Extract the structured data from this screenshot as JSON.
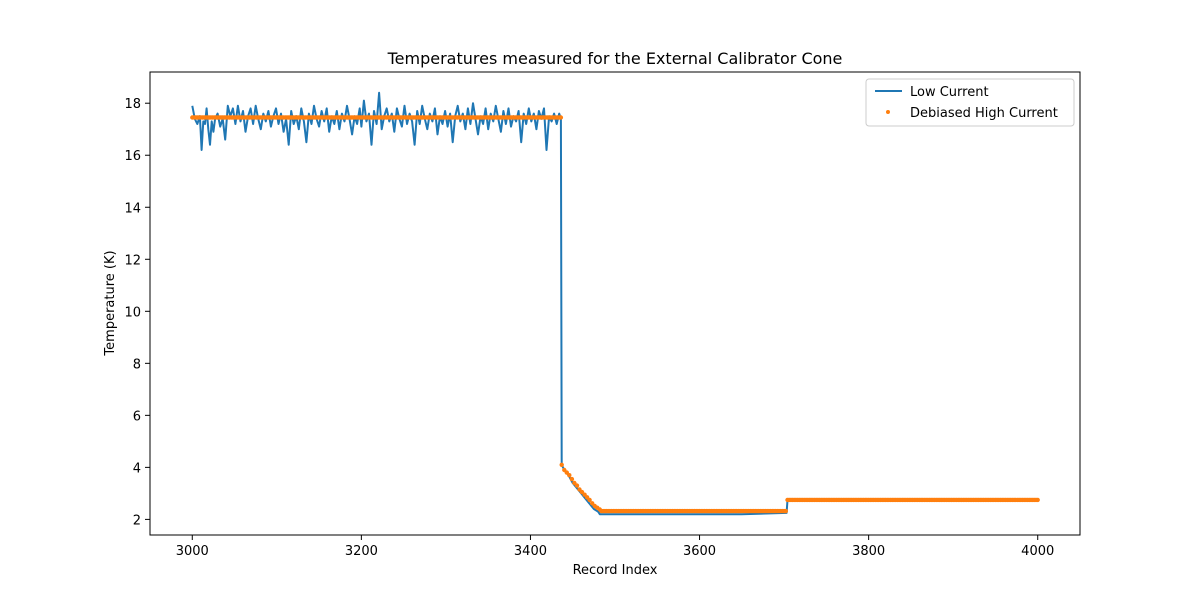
{
  "chart_data": {
    "type": "line",
    "title": "Temperatures measured for the External Calibrator Cone",
    "xlabel": "Record Index",
    "ylabel": "Temperature (K)",
    "xlim": [
      2950,
      4050
    ],
    "ylim": [
      1.4,
      19.2
    ],
    "x_ticks": [
      3000,
      3200,
      3400,
      3600,
      3800,
      4000
    ],
    "x_tick_labels": [
      "3000",
      "3200",
      "3400",
      "3600",
      "3800",
      "4000"
    ],
    "y_ticks": [
      2,
      4,
      6,
      8,
      10,
      12,
      14,
      16,
      18
    ],
    "y_tick_labels": [
      "2",
      "4",
      "6",
      "8",
      "10",
      "12",
      "14",
      "16",
      "18"
    ],
    "grid": false,
    "legend_position": "top-right",
    "series": [
      {
        "name": "Low Current",
        "kind": "line",
        "color": "#1f77b4",
        "points": [
          [
            3000,
            17.9
          ],
          [
            3003,
            17.4
          ],
          [
            3006,
            17.2
          ],
          [
            3009,
            17.5
          ],
          [
            3011,
            16.2
          ],
          [
            3013,
            17.3
          ],
          [
            3015,
            17.2
          ],
          [
            3017,
            17.8
          ],
          [
            3019,
            17.0
          ],
          [
            3021,
            16.4
          ],
          [
            3023,
            17.3
          ],
          [
            3025,
            16.9
          ],
          [
            3027,
            17.4
          ],
          [
            3030,
            17.6
          ],
          [
            3033,
            17.1
          ],
          [
            3036,
            17.4
          ],
          [
            3039,
            16.6
          ],
          [
            3042,
            17.9
          ],
          [
            3045,
            17.5
          ],
          [
            3048,
            17.8
          ],
          [
            3051,
            17.2
          ],
          [
            3054,
            17.9
          ],
          [
            3057,
            17.3
          ],
          [
            3060,
            17.7
          ],
          [
            3063,
            16.9
          ],
          [
            3066,
            17.5
          ],
          [
            3069,
            17.8
          ],
          [
            3072,
            17.2
          ],
          [
            3075,
            17.9
          ],
          [
            3078,
            17.4
          ],
          [
            3081,
            17.0
          ],
          [
            3084,
            17.6
          ],
          [
            3087,
            17.3
          ],
          [
            3090,
            17.7
          ],
          [
            3093,
            17.1
          ],
          [
            3096,
            17.5
          ],
          [
            3099,
            17.8
          ],
          [
            3102,
            17.2
          ],
          [
            3105,
            17.6
          ],
          [
            3108,
            16.9
          ],
          [
            3111,
            17.4
          ],
          [
            3114,
            16.4
          ],
          [
            3117,
            17.7
          ],
          [
            3120,
            17.2
          ],
          [
            3123,
            17.5
          ],
          [
            3126,
            17.0
          ],
          [
            3129,
            17.8
          ],
          [
            3132,
            17.3
          ],
          [
            3135,
            16.5
          ],
          [
            3138,
            17.6
          ],
          [
            3141,
            17.2
          ],
          [
            3144,
            17.9
          ],
          [
            3147,
            17.4
          ],
          [
            3150,
            17.1
          ],
          [
            3153,
            17.7
          ],
          [
            3156,
            17.3
          ],
          [
            3159,
            17.8
          ],
          [
            3162,
            16.9
          ],
          [
            3165,
            17.5
          ],
          [
            3168,
            17.2
          ],
          [
            3171,
            17.7
          ],
          [
            3174,
            17.0
          ],
          [
            3177,
            17.6
          ],
          [
            3180,
            17.3
          ],
          [
            3183,
            17.9
          ],
          [
            3186,
            17.4
          ],
          [
            3189,
            16.8
          ],
          [
            3192,
            17.5
          ],
          [
            3195,
            17.2
          ],
          [
            3198,
            17.8
          ],
          [
            3200,
            17.1
          ],
          [
            3203,
            18.1
          ],
          [
            3206,
            17.3
          ],
          [
            3209,
            17.6
          ],
          [
            3212,
            16.4
          ],
          [
            3215,
            17.7
          ],
          [
            3218,
            17.2
          ],
          [
            3221,
            18.4
          ],
          [
            3224,
            17.0
          ],
          [
            3227,
            17.5
          ],
          [
            3230,
            17.8
          ],
          [
            3233,
            17.3
          ],
          [
            3236,
            17.6
          ],
          [
            3239,
            16.9
          ],
          [
            3242,
            17.8
          ],
          [
            3245,
            17.4
          ],
          [
            3248,
            17.1
          ],
          [
            3251,
            17.9
          ],
          [
            3254,
            17.2
          ],
          [
            3257,
            17.6
          ],
          [
            3260,
            17.3
          ],
          [
            3263,
            16.4
          ],
          [
            3266,
            17.7
          ],
          [
            3269,
            17.2
          ],
          [
            3272,
            17.9
          ],
          [
            3275,
            17.4
          ],
          [
            3278,
            17.0
          ],
          [
            3281,
            17.6
          ],
          [
            3284,
            17.3
          ],
          [
            3287,
            17.8
          ],
          [
            3290,
            16.8
          ],
          [
            3293,
            17.5
          ],
          [
            3296,
            17.2
          ],
          [
            3299,
            17.7
          ],
          [
            3302,
            17.1
          ],
          [
            3305,
            17.6
          ],
          [
            3308,
            16.5
          ],
          [
            3311,
            17.5
          ],
          [
            3314,
            17.9
          ],
          [
            3317,
            17.3
          ],
          [
            3320,
            17.6
          ],
          [
            3323,
            17.0
          ],
          [
            3326,
            17.8
          ],
          [
            3329,
            17.2
          ],
          [
            3332,
            18.0
          ],
          [
            3335,
            17.4
          ],
          [
            3338,
            16.8
          ],
          [
            3341,
            17.5
          ],
          [
            3344,
            17.2
          ],
          [
            3347,
            17.8
          ],
          [
            3350,
            17.0
          ],
          [
            3353,
            17.6
          ],
          [
            3356,
            17.3
          ],
          [
            3359,
            17.9
          ],
          [
            3362,
            17.4
          ],
          [
            3365,
            16.9
          ],
          [
            3368,
            17.7
          ],
          [
            3371,
            17.2
          ],
          [
            3374,
            17.8
          ],
          [
            3377,
            17.1
          ],
          [
            3380,
            17.5
          ],
          [
            3383,
            17.3
          ],
          [
            3386,
            17.7
          ],
          [
            3389,
            16.5
          ],
          [
            3392,
            17.6
          ],
          [
            3395,
            17.2
          ],
          [
            3398,
            17.8
          ],
          [
            3401,
            17.3
          ],
          [
            3404,
            17.6
          ],
          [
            3407,
            17.0
          ],
          [
            3410,
            17.7
          ],
          [
            3413,
            17.4
          ],
          [
            3416,
            17.8
          ],
          [
            3419,
            16.2
          ],
          [
            3422,
            17.5
          ],
          [
            3425,
            17.3
          ],
          [
            3428,
            17.6
          ],
          [
            3431,
            17.2
          ],
          [
            3434,
            17.6
          ],
          [
            3436,
            17.4
          ],
          [
            3437,
            4.1
          ],
          [
            3440,
            3.9
          ],
          [
            3445,
            3.7
          ],
          [
            3450,
            3.4
          ],
          [
            3455,
            3.2
          ],
          [
            3460,
            3.0
          ],
          [
            3465,
            2.8
          ],
          [
            3470,
            2.6
          ],
          [
            3475,
            2.4
          ],
          [
            3480,
            2.3
          ],
          [
            3482,
            2.2
          ],
          [
            3490,
            2.2
          ],
          [
            3550,
            2.2
          ],
          [
            3600,
            2.2
          ],
          [
            3650,
            2.2
          ],
          [
            3703,
            2.25
          ],
          [
            3704,
            2.75
          ],
          [
            3750,
            2.75
          ],
          [
            3800,
            2.75
          ],
          [
            3850,
            2.75
          ],
          [
            3900,
            2.75
          ],
          [
            3950,
            2.75
          ],
          [
            4000,
            2.75
          ]
        ]
      },
      {
        "name": "Debiased High Current",
        "kind": "scatter",
        "color": "#ff7f0e",
        "segments": [
          {
            "x_start": 3000,
            "x_end": 3436,
            "y": 17.45
          },
          {
            "x_start": 3484,
            "x_end": 3703,
            "y": 2.32
          },
          {
            "x_start": 3704,
            "x_end": 4000,
            "y": 2.75
          }
        ],
        "points": [
          [
            3437,
            4.1
          ],
          [
            3440,
            3.9
          ],
          [
            3443,
            3.8
          ],
          [
            3446,
            3.7
          ],
          [
            3449,
            3.55
          ],
          [
            3452,
            3.4
          ],
          [
            3455,
            3.3
          ],
          [
            3458,
            3.15
          ],
          [
            3461,
            3.05
          ],
          [
            3464,
            2.95
          ],
          [
            3467,
            2.85
          ],
          [
            3470,
            2.75
          ],
          [
            3473,
            2.62
          ],
          [
            3476,
            2.52
          ],
          [
            3479,
            2.45
          ],
          [
            3482,
            2.38
          ]
        ]
      }
    ]
  }
}
